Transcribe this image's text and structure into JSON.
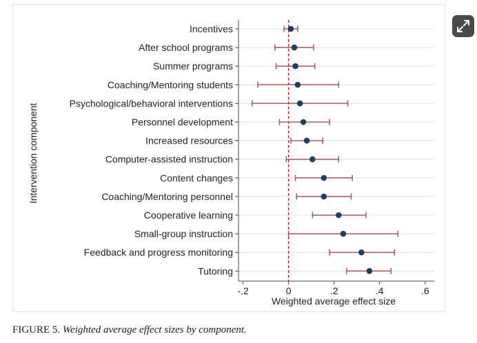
{
  "chart_data": {
    "type": "forest-plot",
    "xlabel": "Weighted average effect size",
    "ylabel": "Intervention component",
    "xlim": [
      -0.22,
      0.64
    ],
    "xticks": [
      -0.2,
      0,
      0.2,
      0.4,
      0.6
    ],
    "xtick_labels": [
      "-.2",
      "0",
      ".2",
      ".4",
      ".6"
    ],
    "reference_line": 0,
    "colors": {
      "point": "#1f3f5f",
      "whisker": "#a8545c",
      "refline": "#c0202a",
      "grid": "#cfe0e0",
      "axis": "#444444"
    },
    "rows": [
      {
        "label": "Incentives",
        "estimate": 0.01,
        "lower": -0.02,
        "upper": 0.04
      },
      {
        "label": "After school programs",
        "estimate": 0.025,
        "lower": -0.06,
        "upper": 0.11
      },
      {
        "label": "Summer programs",
        "estimate": 0.03,
        "lower": -0.055,
        "upper": 0.115
      },
      {
        "label": "Coaching/Mentoring students",
        "estimate": 0.04,
        "lower": -0.135,
        "upper": 0.22
      },
      {
        "label": "Psychological/behavioral interventions",
        "estimate": 0.05,
        "lower": -0.16,
        "upper": 0.26
      },
      {
        "label": "Personnel development",
        "estimate": 0.065,
        "lower": -0.04,
        "upper": 0.18
      },
      {
        "label": "Increased resources",
        "estimate": 0.08,
        "lower": 0.01,
        "upper": 0.15
      },
      {
        "label": "Computer-assisted instruction",
        "estimate": 0.105,
        "lower": -0.01,
        "upper": 0.22
      },
      {
        "label": "Content changes",
        "estimate": 0.155,
        "lower": 0.03,
        "upper": 0.28
      },
      {
        "label": "Coaching/Mentoring personnel",
        "estimate": 0.155,
        "lower": 0.035,
        "upper": 0.275
      },
      {
        "label": "Cooperative learning",
        "estimate": 0.22,
        "lower": 0.105,
        "upper": 0.34
      },
      {
        "label": "Small-group instruction",
        "estimate": 0.24,
        "lower": 0.0,
        "upper": 0.48
      },
      {
        "label": "Feedback and progress monitoring",
        "estimate": 0.32,
        "lower": 0.18,
        "upper": 0.465
      },
      {
        "label": "Tutoring",
        "estimate": 0.355,
        "lower": 0.255,
        "upper": 0.45
      }
    ]
  },
  "caption": {
    "prefix": "FIGURE 5.",
    "title": "Weighted average effect sizes by component."
  },
  "viewer": {
    "expand_icon": "expand-icon"
  }
}
